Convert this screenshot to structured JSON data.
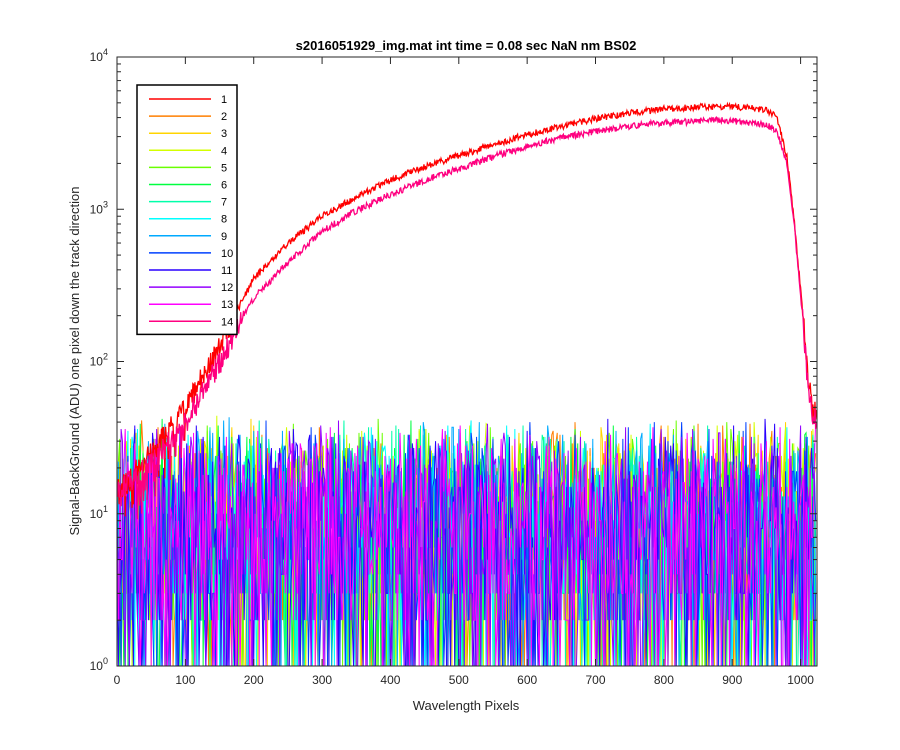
{
  "chart_data": {
    "type": "line",
    "title": "s2016051929_img.mat int time = 0.08 sec  NaN nm BS02",
    "xlabel": "Wavelength Pixels",
    "ylabel": "Signal-BackGround (ADU) one pixel down the track direction",
    "xlim": [
      0,
      1024
    ],
    "ylim": [
      1,
      10000
    ],
    "y_scale": "log",
    "grid": false,
    "legend_position": "top-left",
    "x_ticks": [
      "0",
      "100",
      "200",
      "300",
      "400",
      "500",
      "600",
      "700",
      "800",
      "900",
      "1000"
    ],
    "y_ticks": [
      {
        "base": "10",
        "exp": "0"
      },
      {
        "base": "10",
        "exp": "1"
      },
      {
        "base": "10",
        "exp": "2"
      },
      {
        "base": "10",
        "exp": "3"
      },
      {
        "base": "10",
        "exp": "4"
      }
    ],
    "series": [
      {
        "name": "1",
        "color": "#ff0000",
        "kind": "signal",
        "points": [
          [
            0,
            14
          ],
          [
            50,
            25
          ],
          [
            100,
            50
          ],
          [
            150,
            130
          ],
          [
            200,
            350
          ],
          [
            250,
            600
          ],
          [
            300,
            900
          ],
          [
            350,
            1200
          ],
          [
            400,
            1550
          ],
          [
            450,
            1900
          ],
          [
            500,
            2250
          ],
          [
            550,
            2650
          ],
          [
            600,
            3100
          ],
          [
            650,
            3500
          ],
          [
            700,
            3950
          ],
          [
            750,
            4300
          ],
          [
            800,
            4550
          ],
          [
            850,
            4700
          ],
          [
            880,
            4750
          ],
          [
            920,
            4650
          ],
          [
            950,
            4500
          ],
          [
            965,
            4000
          ],
          [
            980,
            2200
          ],
          [
            990,
            900
          ],
          [
            1000,
            300
          ],
          [
            1010,
            90
          ],
          [
            1018,
            45
          ],
          [
            1023,
            50
          ]
        ]
      },
      {
        "name": "2",
        "color": "#ff7f00",
        "kind": "noise"
      },
      {
        "name": "3",
        "color": "#ffd400",
        "kind": "noise"
      },
      {
        "name": "4",
        "color": "#d4ff00",
        "kind": "noise"
      },
      {
        "name": "5",
        "color": "#6aff00",
        "kind": "noise"
      },
      {
        "name": "6",
        "color": "#00ff40",
        "kind": "noise"
      },
      {
        "name": "7",
        "color": "#00ffaa",
        "kind": "noise"
      },
      {
        "name": "8",
        "color": "#00ffff",
        "kind": "noise"
      },
      {
        "name": "9",
        "color": "#00aaff",
        "kind": "noise"
      },
      {
        "name": "10",
        "color": "#0040ff",
        "kind": "noise"
      },
      {
        "name": "11",
        "color": "#2a00ff",
        "kind": "noise"
      },
      {
        "name": "12",
        "color": "#9500ff",
        "kind": "noise"
      },
      {
        "name": "13",
        "color": "#ff00ff",
        "kind": "noise"
      },
      {
        "name": "14",
        "color": "#ff0080",
        "kind": "signal",
        "points": [
          [
            0,
            14
          ],
          [
            50,
            22
          ],
          [
            100,
            40
          ],
          [
            150,
            100
          ],
          [
            200,
            260
          ],
          [
            250,
            450
          ],
          [
            300,
            720
          ],
          [
            350,
            980
          ],
          [
            400,
            1250
          ],
          [
            450,
            1550
          ],
          [
            500,
            1850
          ],
          [
            550,
            2200
          ],
          [
            600,
            2600
          ],
          [
            650,
            2950
          ],
          [
            700,
            3250
          ],
          [
            750,
            3500
          ],
          [
            800,
            3700
          ],
          [
            850,
            3800
          ],
          [
            880,
            3850
          ],
          [
            920,
            3750
          ],
          [
            950,
            3600
          ],
          [
            965,
            3300
          ],
          [
            980,
            2000
          ],
          [
            990,
            850
          ],
          [
            1000,
            280
          ],
          [
            1010,
            80
          ],
          [
            1018,
            40
          ],
          [
            1023,
            45
          ]
        ]
      }
    ]
  }
}
